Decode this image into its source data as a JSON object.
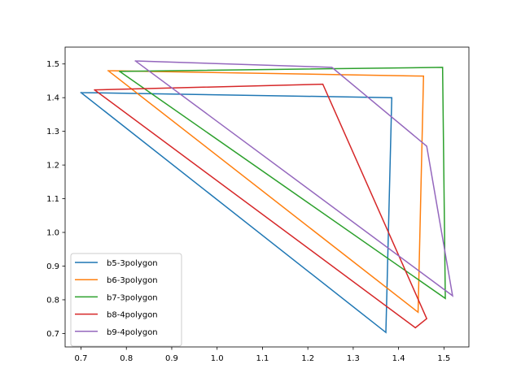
{
  "chart_data": {
    "type": "line",
    "xlim": [
      0.665,
      1.555
    ],
    "ylim": [
      0.66,
      1.55
    ],
    "x_ticks": [
      0.7,
      0.8,
      0.9,
      1.0,
      1.1,
      1.2,
      1.3,
      1.4,
      1.5
    ],
    "x_tick_labels": [
      "0.7",
      "0.8",
      "0.9",
      "1.0",
      "1.1",
      "1.2",
      "1.3",
      "1.4",
      "1.5"
    ],
    "y_ticks": [
      0.7,
      0.8,
      0.9,
      1.0,
      1.1,
      1.2,
      1.3,
      1.4,
      1.5
    ],
    "y_tick_labels": [
      "0.7",
      "0.8",
      "0.9",
      "1.0",
      "1.1",
      "1.2",
      "1.3",
      "1.4",
      "1.5"
    ],
    "grid": false,
    "legend_position": "bottom-left",
    "series": [
      {
        "name": "b5-3polygon",
        "color": "#1f77b4",
        "points": [
          [
            0.7,
            1.415
          ],
          [
            1.385,
            1.4
          ],
          [
            1.372,
            0.703
          ],
          [
            0.7,
            1.415
          ]
        ]
      },
      {
        "name": "b6-3polygon",
        "color": "#ff7f0e",
        "points": [
          [
            0.76,
            1.48
          ],
          [
            1.455,
            1.464
          ],
          [
            1.443,
            0.763
          ],
          [
            0.76,
            1.48
          ]
        ]
      },
      {
        "name": "b7-3polygon",
        "color": "#2ca02c",
        "points": [
          [
            0.785,
            1.478
          ],
          [
            1.497,
            1.49
          ],
          [
            1.503,
            0.804
          ],
          [
            0.785,
            1.478
          ]
        ]
      },
      {
        "name": "b8-4polygon",
        "color": "#d62728",
        "points": [
          [
            0.73,
            1.423
          ],
          [
            1.233,
            1.44
          ],
          [
            1.462,
            0.744
          ],
          [
            1.437,
            0.717
          ],
          [
            0.73,
            1.423
          ]
        ]
      },
      {
        "name": "b9-4polygon",
        "color": "#9467bd",
        "points": [
          [
            0.82,
            1.509
          ],
          [
            1.253,
            1.49
          ],
          [
            1.462,
            1.256
          ],
          [
            1.519,
            0.812
          ],
          [
            0.82,
            1.509
          ]
        ]
      }
    ]
  }
}
